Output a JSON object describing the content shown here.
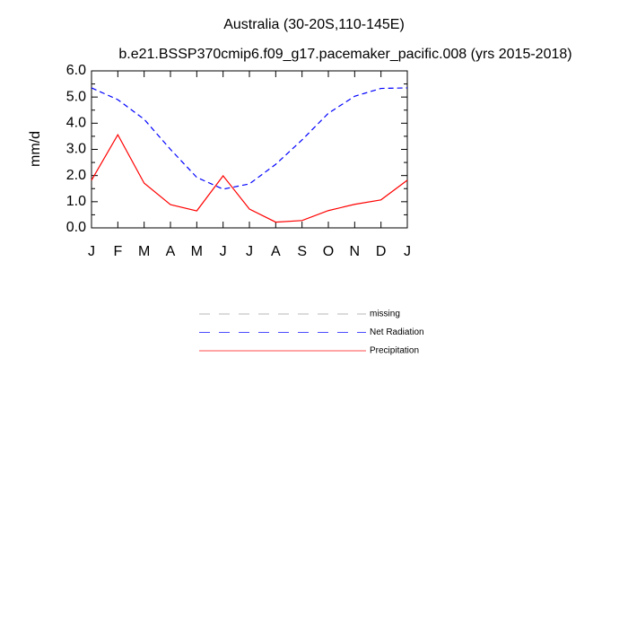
{
  "chart_data": {
    "type": "line",
    "title": "Australia (30-20S,110-145E)",
    "subtitle": "b.e21.BSSP370cmip6.f09_g17.pacemaker_pacific.008 (yrs 2015-2018)",
    "ylabel": "mm/d",
    "categories": [
      "J",
      "F",
      "M",
      "A",
      "M",
      "J",
      "J",
      "A",
      "S",
      "O",
      "N",
      "D",
      "J"
    ],
    "ylim": [
      0,
      6
    ],
    "yticks": [
      {
        "value": 0,
        "label": "0.0"
      },
      {
        "value": 1,
        "label": "1.0"
      },
      {
        "value": 2,
        "label": "2.0"
      },
      {
        "value": 3,
        "label": "3.0"
      },
      {
        "value": 4,
        "label": "4.0"
      },
      {
        "value": 5,
        "label": "5.0"
      },
      {
        "value": 6,
        "label": "6.0"
      }
    ],
    "y_minor_ticks": [
      0.5,
      1.5,
      2.5,
      3.5,
      4.5,
      5.5
    ],
    "series": [
      {
        "name": "missing",
        "color": "#999999",
        "dash": true,
        "values": [
          null,
          null,
          null,
          null,
          null,
          null,
          null,
          null,
          null,
          null,
          null,
          null,
          null
        ]
      },
      {
        "name": "Net Radiation",
        "color": "#0000ff",
        "dash": true,
        "values": [
          5.35,
          4.9,
          4.15,
          3.0,
          1.93,
          1.48,
          1.68,
          2.43,
          3.36,
          4.38,
          5.03,
          5.33,
          5.35
        ]
      },
      {
        "name": "Precipitation",
        "color": "#ff0000",
        "dash": false,
        "values": [
          1.82,
          3.56,
          1.71,
          0.89,
          0.65,
          1.99,
          0.72,
          0.22,
          0.28,
          0.66,
          0.9,
          1.07,
          1.82
        ]
      }
    ]
  }
}
